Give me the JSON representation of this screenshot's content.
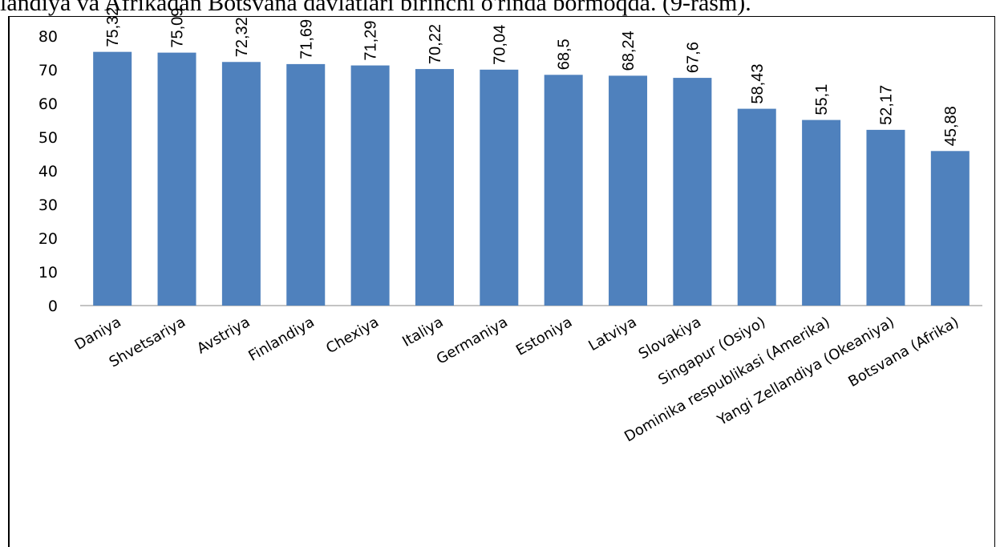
{
  "caption": "landiya va Afrikadan Botsvana davlatlari birinchi o'rinda bormoqda. (9-rasm).",
  "chart_data": {
    "type": "bar",
    "categories": [
      "Daniya",
      "Shvetsariya",
      "Avstriya",
      "Finlandiya",
      "Chexiya",
      "Italiya",
      "Germaniya",
      "Estoniya",
      "Latviya",
      "Slovakiya",
      "Singapur (Osiyo)",
      "Dominika respublikasi (Amerika)",
      "Yangi Zellandiya (Okeaniya)",
      "Botsvana (Afrika)"
    ],
    "values": [
      75.32,
      75.09,
      72.32,
      71.69,
      71.29,
      70.22,
      70.04,
      68.5,
      68.24,
      67.6,
      58.43,
      55.1,
      52.17,
      45.88
    ],
    "value_labels": [
      "75,32",
      "75,09",
      "72,32",
      "71,69",
      "71,29",
      "70,22",
      "70,04",
      "68,5",
      "68,24",
      "67,6",
      "58,43",
      "55,1",
      "52,17",
      "45,88"
    ],
    "yticks": [
      "0",
      "10",
      "20",
      "30",
      "40",
      "50",
      "60",
      "70",
      "80"
    ],
    "ylim": [
      0,
      80
    ],
    "bar_color": "#4f81bd",
    "grid": false,
    "legend": false
  }
}
